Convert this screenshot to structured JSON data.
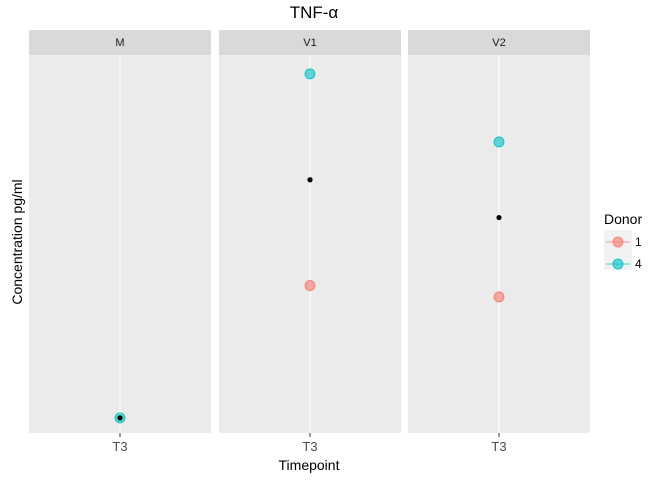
{
  "chart_data": {
    "type": "scatter",
    "title": "TNF-α",
    "xlabel": "Timepoint",
    "ylabel": "Concentration pg/ml",
    "y_tick_labels_shown": false,
    "grid": true,
    "legend": {
      "title": "Donor",
      "placement": "right",
      "entries": [
        "1",
        "4"
      ]
    },
    "colors": {
      "1": "#f8766d",
      "4": "#00bfc4",
      "mean": "#000000",
      "panel": "#ebebeb",
      "strip": "#d9d9d9",
      "grid": "#ffffff"
    },
    "ylim": [
      0,
      100
    ],
    "facets": [
      {
        "label": "M",
        "x": [
          "T3"
        ],
        "points": [
          {
            "donor": "4",
            "x": "T3",
            "y": 4
          }
        ],
        "mean": {
          "x": "T3",
          "y": 4
        }
      },
      {
        "label": "V1",
        "x": [
          "T3"
        ],
        "points": [
          {
            "donor": "4",
            "x": "T3",
            "y": 95
          },
          {
            "donor": "1",
            "x": "T3",
            "y": 39
          }
        ],
        "mean": {
          "x": "T3",
          "y": 67
        }
      },
      {
        "label": "V2",
        "x": [
          "T3"
        ],
        "points": [
          {
            "donor": "4",
            "x": "T3",
            "y": 77
          },
          {
            "donor": "1",
            "x": "T3",
            "y": 36
          }
        ],
        "mean": {
          "x": "T3",
          "y": 57
        }
      }
    ]
  }
}
